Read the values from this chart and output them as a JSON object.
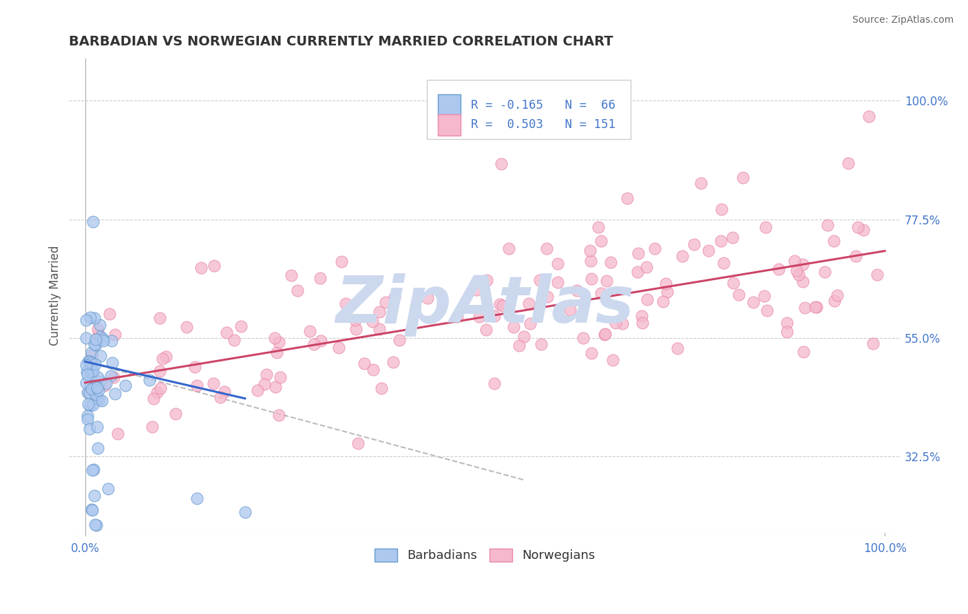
{
  "title": "BARBADIAN VS NORWEGIAN CURRENTLY MARRIED CORRELATION CHART",
  "source": "Source: ZipAtlas.com",
  "ylabel": "Currently Married",
  "ytick_labels": [
    "32.5%",
    "55.0%",
    "77.5%",
    "100.0%"
  ],
  "ytick_values": [
    0.325,
    0.55,
    0.775,
    1.0
  ],
  "xtick_labels": [
    "0.0%",
    "100.0%"
  ],
  "xlim": [
    -0.02,
    1.02
  ],
  "ylim": [
    0.18,
    1.08
  ],
  "barbadian_color": "#adc8ef",
  "barbadian_edge": "#6699cc",
  "norwegian_color": "#f5b8cc",
  "norwegian_edge": "#e888aa",
  "blue_line_color": "#3366cc",
  "pink_line_color": "#cc4466",
  "dashed_line_color": "#bbbbbb",
  "watermark_color": "#ccd8ee",
  "watermark_text": "ZipAtlas",
  "background_color": "#ffffff",
  "grid_color": "#cccccc",
  "title_color": "#333333",
  "axis_label_color": "#4477cc",
  "legend_box_color": "#eeeeee",
  "legend_box_edge": "#cccccc",
  "R_barbadian": -0.165,
  "N_barbadian": 66,
  "R_norwegian": 0.503,
  "N_norwegian": 151,
  "pink_line_x0": 0.0,
  "pink_line_y0": 0.465,
  "pink_line_x1": 1.0,
  "pink_line_y1": 0.715,
  "blue_line_x0": 0.0,
  "blue_line_y0": 0.505,
  "blue_line_x1": 0.2,
  "blue_line_y1": 0.435,
  "dashed_line_x0": 0.0,
  "dashed_line_y0": 0.505,
  "dashed_line_x1": 0.55,
  "dashed_line_y1": 0.28
}
